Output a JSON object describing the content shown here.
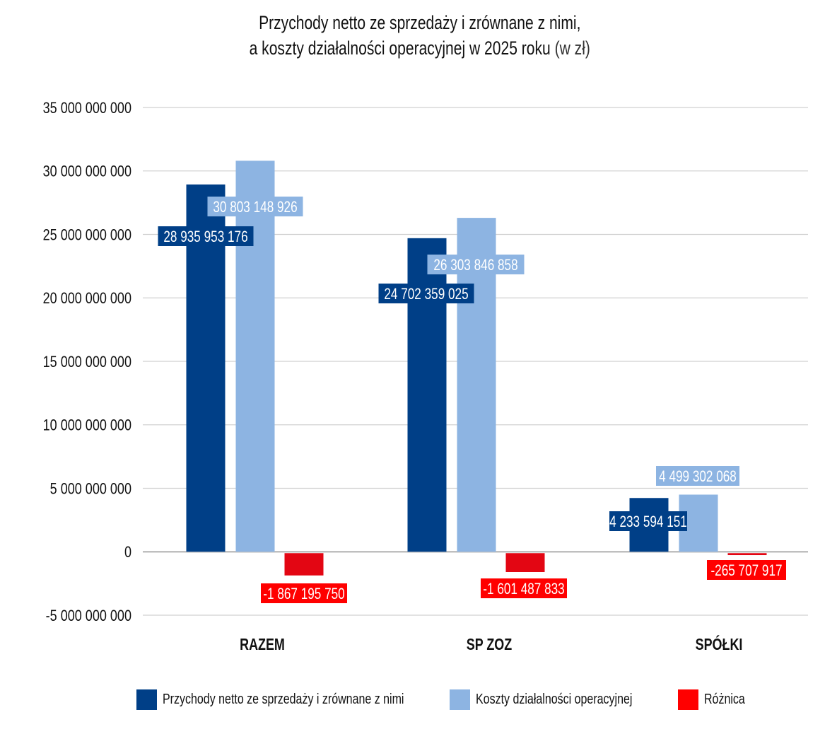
{
  "chart_data": {
    "type": "bar",
    "title_main_line1": "Przychody netto ze sprzedaży i zrównane z nimi,",
    "title_main_line2": "a koszty działalności operacyjnej w 2025 roku",
    "title_unit": "(w zł)",
    "xlabel": "",
    "ylabel": "",
    "ylim": [
      -5000000000,
      35000000000
    ],
    "yticks": [
      35000000000,
      30000000000,
      25000000000,
      20000000000,
      15000000000,
      10000000000,
      5000000000,
      0,
      -5000000000
    ],
    "ytick_labels": [
      "35 000 000 000",
      "30 000 000 000",
      "25 000 000 000",
      "20 000 000 000",
      "15 000 000 000",
      "10 000 000 000",
      "5 000 000 000",
      "0",
      "-5 000 000 000"
    ],
    "grid": true,
    "categories": [
      "RAZEM",
      "SP ZOZ",
      "SPÓŁKI"
    ],
    "series": [
      {
        "name": "Przychody netto ze sprzedaży i zrównane z nimi",
        "color": "#003f87",
        "values": [
          28935953176,
          24702359025,
          4233594151
        ],
        "labels": [
          "28 935 953 176",
          "24 702 359 025",
          "4 233 594 151"
        ]
      },
      {
        "name": "Koszty działalności operacyjnej",
        "color": "#8db4e2",
        "values": [
          30803148926,
          26303846858,
          4499302068
        ],
        "labels": [
          "30 803 148 926",
          "26 303 846 858",
          "4 499 302 068"
        ]
      },
      {
        "name": "Różnica",
        "color": "#e30613",
        "label_bg": "#ff0000",
        "values": [
          -1867195750,
          -1601487833,
          -265707917
        ],
        "labels": [
          "-1 867 195 750",
          "-1 601 487 833",
          "-265 707 917"
        ]
      }
    ],
    "legend_position": "bottom"
  }
}
